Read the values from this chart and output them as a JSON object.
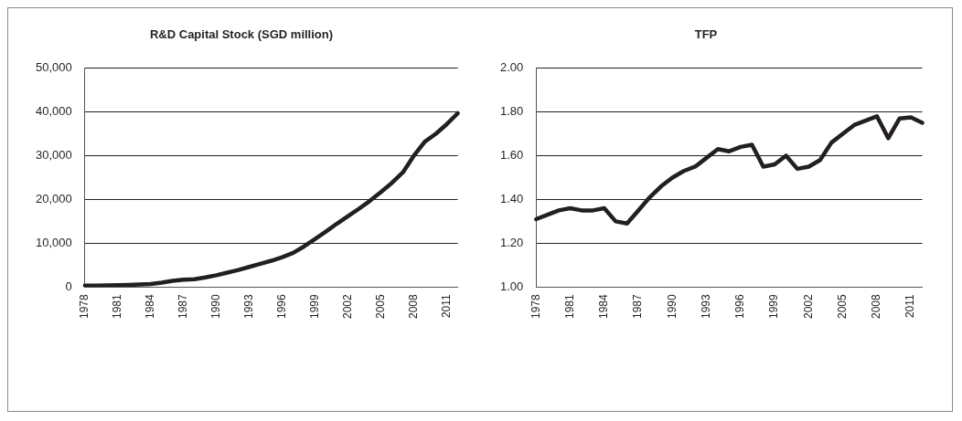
{
  "chart_data": [
    {
      "type": "line",
      "title": "R&D Capital Stock (SGD million)",
      "categories": [
        "1978",
        null,
        null,
        "1981",
        null,
        null,
        "1984",
        null,
        null,
        "1987",
        null,
        null,
        "1990",
        null,
        null,
        "1993",
        null,
        null,
        "1996",
        null,
        null,
        "1999",
        null,
        null,
        "2002",
        null,
        null,
        "2005",
        null,
        null,
        "2008",
        null,
        null,
        "2011",
        null
      ],
      "series": [
        {
          "color": "#231f20",
          "values": [
            300,
            350,
            400,
            450,
            500,
            600,
            700,
            1000,
            1400,
            1700,
            1800,
            2200,
            2700,
            3300,
            3900,
            4600,
            5300,
            6000,
            6800,
            7800,
            9300,
            11000,
            12700,
            14500,
            16200,
            17900,
            19700,
            21700,
            23800,
            26200,
            30000,
            33200,
            35000,
            37200,
            39700
          ]
        }
      ],
      "ylim": [
        0,
        50000
      ],
      "yticks": [
        0,
        {
          "value": 10000,
          "label": "10,000"
        },
        {
          "value": 20000,
          "label": "20,000"
        },
        {
          "value": 30000,
          "label": "30,000"
        },
        {
          "value": 40000,
          "label": "40,000"
        },
        {
          "value": 50000,
          "label": "50,000"
        }
      ],
      "grid": "y",
      "legend": false,
      "marker": "none",
      "line_style": "solid"
    },
    {
      "type": "line",
      "title": "TFP",
      "categories": [
        "1978",
        null,
        null,
        "1981",
        null,
        null,
        "1984",
        null,
        null,
        "1987",
        null,
        null,
        "1990",
        null,
        null,
        "1993",
        null,
        null,
        "1996",
        null,
        null,
        "1999",
        null,
        null,
        "2002",
        null,
        null,
        "2005",
        null,
        null,
        "2008",
        null,
        null,
        "2011",
        null
      ],
      "series": [
        {
          "color": "#231f20",
          "values": [
            1.31,
            1.33,
            1.35,
            1.36,
            1.35,
            1.35,
            1.36,
            1.3,
            1.29,
            1.35,
            1.41,
            1.46,
            1.5,
            1.53,
            1.55,
            1.59,
            1.63,
            1.62,
            1.64,
            1.65,
            1.55,
            1.56,
            1.6,
            1.54,
            1.55,
            1.58,
            1.66,
            1.7,
            1.74,
            1.76,
            1.78,
            1.68,
            1.77,
            1.775,
            1.75
          ]
        }
      ],
      "ylim": [
        1,
        2
      ],
      "yticks": [
        {
          "value": 1,
          "label": "1.00"
        },
        {
          "value": 1.2,
          "label": "1.20"
        },
        {
          "value": 1.4,
          "label": "1.40"
        },
        {
          "value": 1.6,
          "label": "1.60"
        },
        {
          "value": 1.8,
          "label": "1.80"
        },
        {
          "value": 2,
          "label": "2.00"
        }
      ],
      "grid": "y",
      "legend": false,
      "marker": "none",
      "line_style": "solid"
    }
  ]
}
